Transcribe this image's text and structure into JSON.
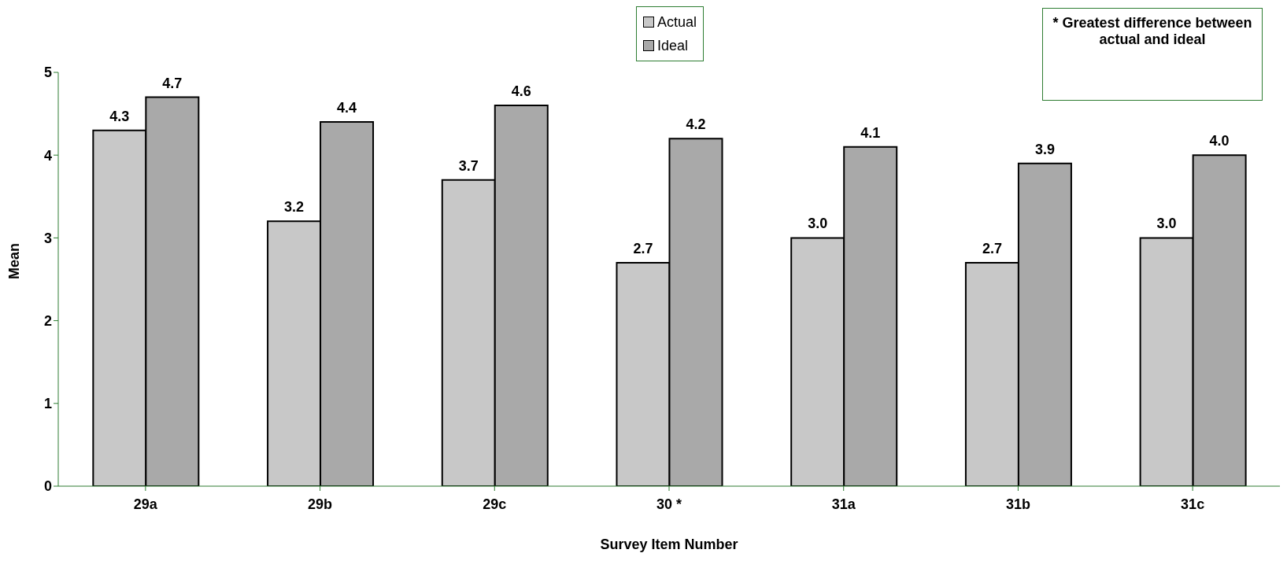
{
  "chart_data": {
    "type": "bar",
    "xlabel": "Survey Item Number",
    "ylabel": "Mean",
    "categories": [
      "29a",
      "29b",
      "29c",
      "30 *",
      "31a",
      "31b",
      "31c"
    ],
    "series": [
      {
        "name": "Actual",
        "color": "#c8c8c8",
        "values": [
          4.3,
          3.2,
          3.7,
          2.7,
          3.0,
          2.7,
          3.0
        ],
        "value_labels": [
          "4.3",
          "3.2",
          "3.7",
          "2.7",
          "3.0",
          "2.7",
          "3.0"
        ]
      },
      {
        "name": "Ideal",
        "color": "#a9a9a9",
        "values": [
          4.7,
          4.4,
          4.6,
          4.2,
          4.1,
          3.9,
          4.0
        ],
        "value_labels": [
          "4.7",
          "4.4",
          "4.6",
          "4.2",
          "4.1",
          "3.9",
          "4.0"
        ]
      }
    ],
    "ylim": [
      0,
      5
    ],
    "yticks": [
      0,
      1,
      2,
      3,
      4,
      5
    ],
    "grid": false,
    "legend": "top",
    "annotations": [
      "* Greatest difference between actual and ideal"
    ]
  }
}
